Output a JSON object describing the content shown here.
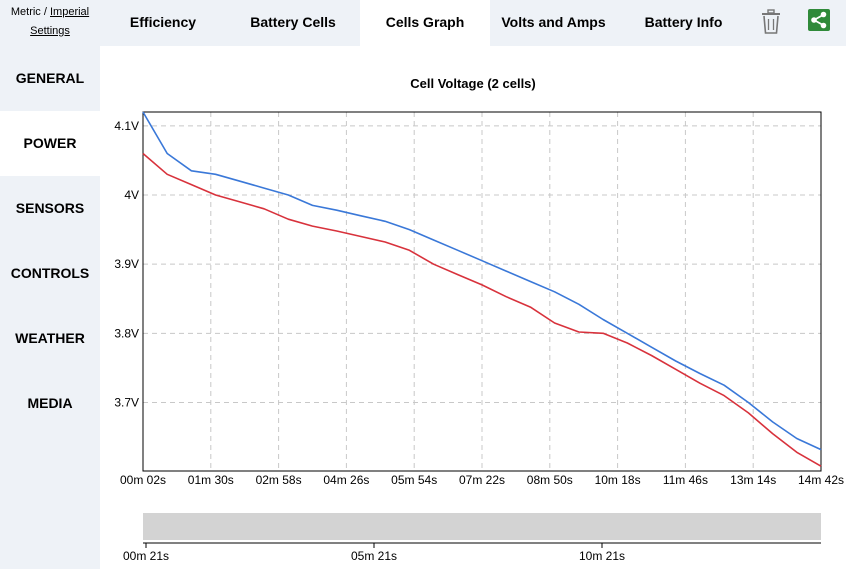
{
  "units": {
    "metric": "Metric",
    "separator": "/",
    "imperial": "Imperial",
    "settings": "Settings"
  },
  "tabs": [
    {
      "label": "Efficiency"
    },
    {
      "label": "Battery Cells"
    },
    {
      "label": "Cells Graph",
      "active": true
    },
    {
      "label": "Volts and Amps"
    },
    {
      "label": "Battery Info"
    }
  ],
  "toolbar": {
    "delete_icon": "trash-icon",
    "share_icon": "share-icon",
    "share_color": "#2f8a3a"
  },
  "sidebar": {
    "items": [
      {
        "label": "GENERAL"
      },
      {
        "label": "POWER",
        "active": true
      },
      {
        "label": "SENSORS"
      },
      {
        "label": "CONTROLS"
      },
      {
        "label": "WEATHER"
      },
      {
        "label": "MEDIA"
      }
    ]
  },
  "chart_data": {
    "type": "line",
    "title": "Cell Voltage (2 cells)",
    "xlabel": "",
    "ylabel": "",
    "ylim": [
      3.601,
      4.12
    ],
    "ytick_labels": [
      "4.1V",
      "4V",
      "3.9V",
      "3.8V",
      "3.7V"
    ],
    "yticks": [
      4.1,
      4.0,
      3.9,
      3.8,
      3.7
    ],
    "xtick_labels": [
      "00m 02s",
      "01m 30s",
      "02m 58s",
      "04m 26s",
      "05m 54s",
      "07m 22s",
      "08m 50s",
      "10m 18s",
      "11m 46s",
      "13m 14s",
      "14m 42s"
    ],
    "grid": true,
    "series": [
      {
        "color": "#3a78d8",
        "values": [
          4.12,
          4.06,
          4.035,
          4.03,
          4.02,
          4.01,
          4.0,
          3.985,
          3.978,
          3.97,
          3.962,
          3.95,
          3.935,
          3.92,
          3.905,
          3.89,
          3.875,
          3.86,
          3.842,
          3.82,
          3.8,
          3.78,
          3.76,
          3.742,
          3.725,
          3.7,
          3.672,
          3.648,
          3.632
        ]
      },
      {
        "color": "#d8323c",
        "values": [
          4.06,
          4.03,
          4.015,
          4.0,
          3.99,
          3.98,
          3.965,
          3.955,
          3.948,
          3.94,
          3.932,
          3.92,
          3.9,
          3.885,
          3.87,
          3.853,
          3.838,
          3.815,
          3.802,
          3.8,
          3.786,
          3.768,
          3.748,
          3.728,
          3.71,
          3.685,
          3.655,
          3.628,
          3.608
        ]
      }
    ],
    "navigator": {
      "tick_labels": [
        "00m 21s",
        "05m 21s",
        "10m 21s"
      ]
    }
  }
}
